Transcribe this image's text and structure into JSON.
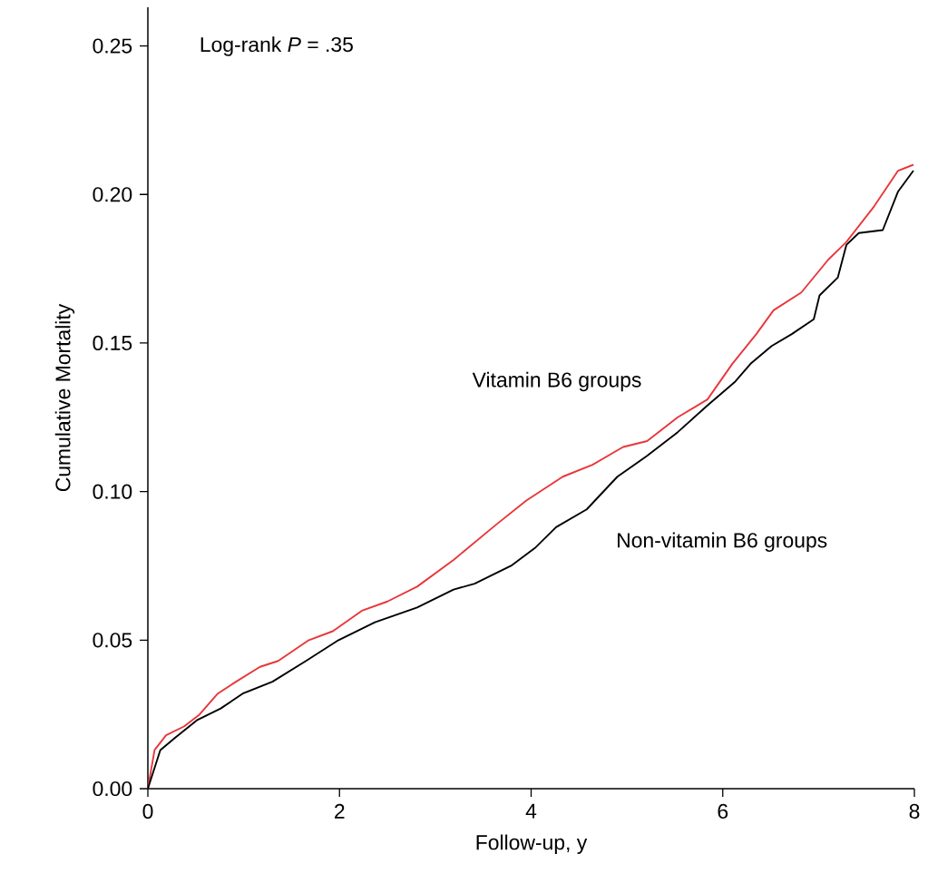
{
  "chart_data": {
    "type": "line",
    "xlabel": "Follow-up, y",
    "ylabel": "Cumulative Mortality",
    "xlim": [
      0,
      8
    ],
    "ylim": [
      0,
      0.263
    ],
    "xticks": [
      0,
      2,
      4,
      6,
      8
    ],
    "yticks": [
      {
        "value": 0,
        "label": "0.00"
      },
      {
        "value": 0.05,
        "label": "0.05"
      },
      {
        "value": 0.1,
        "label": "0.10"
      },
      {
        "value": 0.15,
        "label": "0.15"
      },
      {
        "value": 0.2,
        "label": "0.20"
      },
      {
        "value": 0.25,
        "label": "0.25"
      }
    ],
    "annotations": [
      {
        "text": "Log-rank *P* = .35"
      }
    ],
    "series": [
      {
        "name": "Vitamin B6 groups",
        "color": "#e8363a",
        "x": [
          0,
          0.07,
          0.19,
          0.38,
          0.54,
          0.73,
          0.92,
          1.17,
          1.36,
          1.68,
          1.93,
          2.24,
          2.5,
          2.81,
          3.19,
          3.64,
          3.95,
          4.33,
          4.64,
          4.96,
          5.21,
          5.53,
          5.84,
          6.1,
          6.35,
          6.53,
          6.82,
          7.1,
          7.29,
          7.58,
          7.83,
          7.99
        ],
        "values": [
          0,
          0.013,
          0.018,
          0.021,
          0.025,
          0.032,
          0.036,
          0.041,
          0.043,
          0.05,
          0.053,
          0.06,
          0.063,
          0.068,
          0.077,
          0.089,
          0.097,
          0.105,
          0.109,
          0.115,
          0.117,
          0.125,
          0.131,
          0.143,
          0.153,
          0.161,
          0.167,
          0.178,
          0.184,
          0.196,
          0.208,
          0.21
        ]
      },
      {
        "name": "Non-vitamin B6 groups",
        "color": "#000000",
        "x": [
          0,
          0.13,
          0.28,
          0.51,
          0.76,
          0.99,
          1.3,
          1.65,
          1.99,
          2.37,
          2.81,
          3.19,
          3.41,
          3.79,
          4.04,
          4.26,
          4.58,
          4.9,
          5.21,
          5.53,
          5.84,
          6.13,
          6.29,
          6.51,
          6.72,
          6.95,
          7.01,
          7.2,
          7.29,
          7.42,
          7.67,
          7.83,
          7.99
        ],
        "values": [
          0,
          0.013,
          0.017,
          0.023,
          0.027,
          0.032,
          0.036,
          0.043,
          0.05,
          0.056,
          0.061,
          0.067,
          0.069,
          0.075,
          0.081,
          0.088,
          0.094,
          0.105,
          0.112,
          0.12,
          0.129,
          0.137,
          0.143,
          0.149,
          0.153,
          0.158,
          0.166,
          0.172,
          0.183,
          0.187,
          0.188,
          0.201,
          0.208
        ]
      }
    ]
  }
}
